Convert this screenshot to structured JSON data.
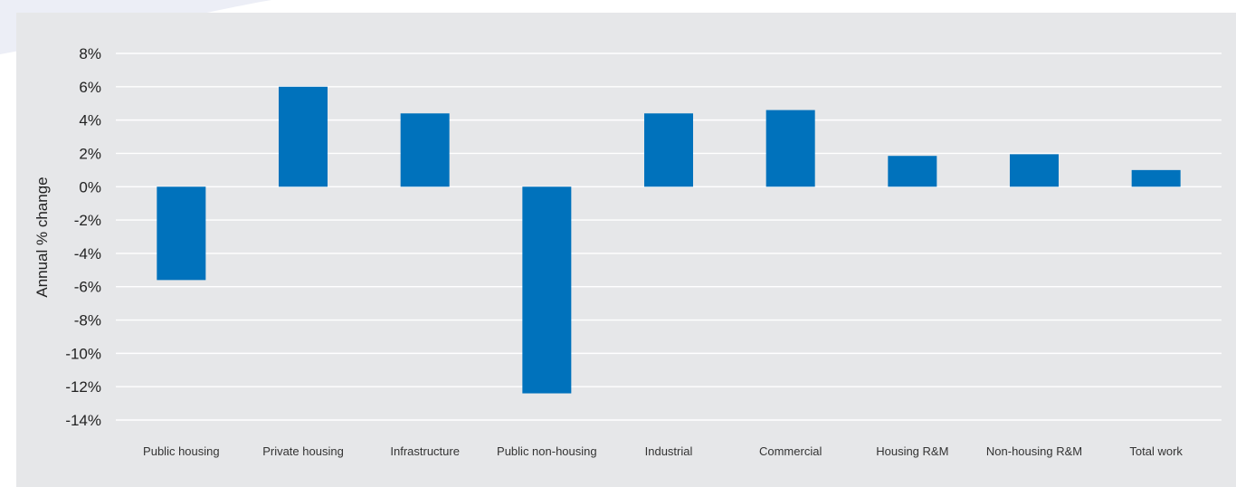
{
  "chart_data": {
    "type": "bar",
    "title": "",
    "xlabel": "",
    "ylabel": "Annual % change",
    "ylim": [
      -14,
      8
    ],
    "yticks": [
      8,
      6,
      4,
      2,
      0,
      -2,
      -4,
      -6,
      -8,
      -10,
      -12,
      -14
    ],
    "ytick_labels": [
      "8%",
      "6%",
      "4%",
      "2%",
      "0%",
      "-2%",
      "-4%",
      "-6%",
      "-8%",
      "-10%",
      "-12%",
      "-14%"
    ],
    "grid": true,
    "legend": "none",
    "categories": [
      "Public housing",
      "Private housing",
      "Infrastructure",
      "Public non-housing",
      "Industrial",
      "Commercial",
      "Housing R&M",
      "Non-housing R&M",
      "Total work"
    ],
    "values": [
      -5.6,
      6.0,
      4.4,
      -12.4,
      4.4,
      4.6,
      1.85,
      1.95,
      1.0
    ],
    "colors": {
      "bar": "#0072bc",
      "grid": "#ffffff",
      "panel": "#e6e7e9"
    }
  }
}
